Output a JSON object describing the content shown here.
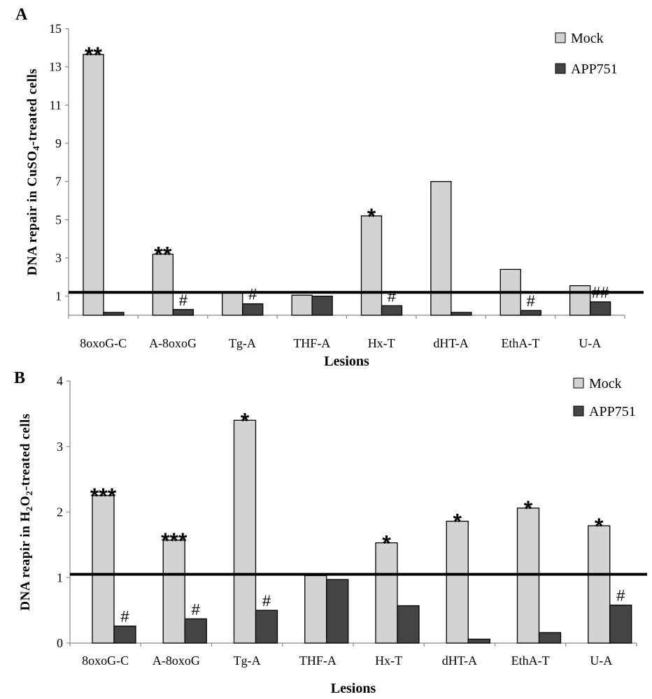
{
  "chart_data": [
    {
      "type": "bar",
      "panel_label": "A",
      "xlabel": "Lesions",
      "ylabel_parts": [
        "DNA repair in CuSO",
        "4",
        "-treated cells"
      ],
      "categories": [
        "8oxoG-C",
        "A-8oxoG",
        "Tg-A",
        "THF-A",
        "Hx-T",
        "dHT-A",
        "EthA-T",
        "U-A"
      ],
      "tick_text": [
        "8oxoG-C",
        "A-8oxoG",
        "Tg-A",
        "THF-A",
        "Hx-T",
        "dHT-A",
        "EthA-T",
        "U-A"
      ],
      "series": [
        {
          "name": "Mock",
          "color": "#d3d3d3",
          "values": [
            13.65,
            3.2,
            1.2,
            1.05,
            5.2,
            7.0,
            2.4,
            1.55
          ],
          "annotations": [
            "**",
            "**",
            "",
            "",
            "*",
            "",
            "",
            ""
          ]
        },
        {
          "name": "APP751",
          "color": "#444444",
          "values": [
            0.15,
            0.3,
            0.6,
            1.0,
            0.5,
            0.15,
            0.25,
            0.7
          ],
          "annotations": [
            "",
            "#",
            "#",
            "",
            "#",
            "",
            "#",
            "##"
          ]
        }
      ],
      "reference_line": 1.2,
      "ylim": [
        0,
        15
      ],
      "yticks": [
        1,
        3,
        5,
        7,
        9,
        11,
        13,
        15
      ],
      "legend_position": "top-right",
      "grid": false
    },
    {
      "type": "bar",
      "panel_label": "B",
      "xlabel": "Lesions",
      "ylabel_parts": [
        "DNA reapir in H",
        "2",
        "O",
        "2",
        "-treated cells"
      ],
      "categories": [
        "8oxoG-C",
        "A-8oxoG",
        "Tg-A",
        "THF-A",
        "Hx-T",
        "dHT-A",
        "EthA-T",
        "U-A"
      ],
      "tick_text": [
        "8oxoG-C",
        "A-8oxoG",
        "Tg-A",
        "THF-A",
        "Hx-T",
        "dHT-A",
        "EthA-T",
        "U-A"
      ],
      "series": [
        {
          "name": "Mock",
          "color": "#d3d3d3",
          "values": [
            2.25,
            1.57,
            3.4,
            1.03,
            1.53,
            1.86,
            2.06,
            1.79
          ],
          "annotations": [
            "***",
            "***",
            "*",
            "",
            "*",
            "*",
            "*",
            "*"
          ]
        },
        {
          "name": "APP751",
          "color": "#444444",
          "values": [
            0.26,
            0.37,
            0.5,
            0.97,
            0.57,
            0.06,
            0.16,
            0.58
          ],
          "annotations": [
            "#",
            "#",
            "#",
            "",
            "",
            "",
            "",
            "#"
          ]
        }
      ],
      "reference_line": 1.05,
      "ylim": [
        0,
        4
      ],
      "yticks": [
        0,
        1,
        2,
        3,
        4
      ],
      "legend_position": "top-right",
      "grid": false
    }
  ]
}
